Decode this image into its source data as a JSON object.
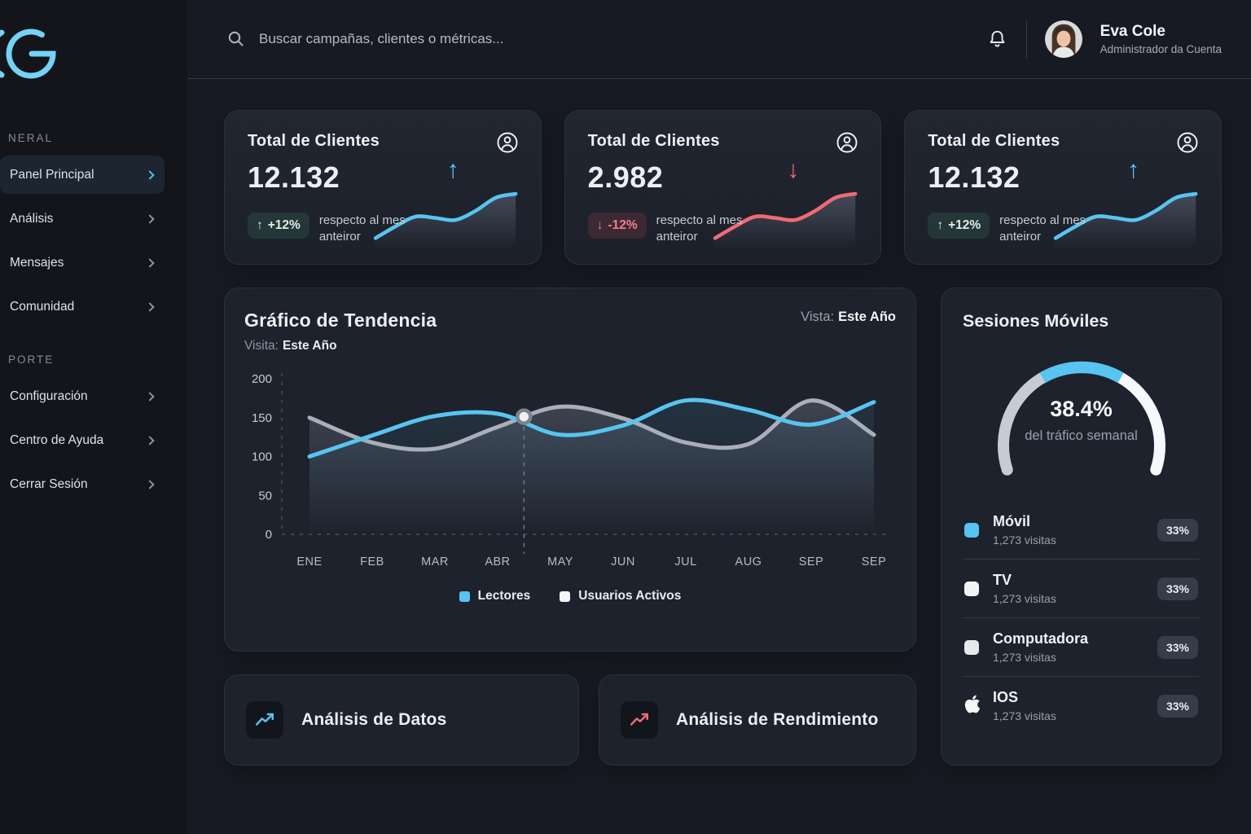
{
  "topbar": {
    "search_placeholder": "Buscar campañas, clientes o métricas...",
    "user_name": "Eva Cole",
    "user_role": "Administrador da Cuenta"
  },
  "sidebar": {
    "sections": [
      {
        "label": "NERAL",
        "items": [
          {
            "label": "Panel Principal",
            "active": true
          },
          {
            "label": "Análisis",
            "active": false
          },
          {
            "label": "Mensajes",
            "active": false
          },
          {
            "label": "Comunidad",
            "active": false
          }
        ]
      },
      {
        "label": "PORTE",
        "items": [
          {
            "label": "Configuración",
            "active": false
          },
          {
            "label": "Centro de Ayuda",
            "active": false
          },
          {
            "label": "Cerrar Sesión",
            "active": false
          }
        ]
      }
    ]
  },
  "stat_cards": [
    {
      "title": "Total de Clientes",
      "value": "12.132",
      "arrow": "↑",
      "change": "+12%",
      "trend": "up",
      "note": "respecto al mes anteiror",
      "accent": "#58c4f0",
      "spark": [
        12,
        30,
        45,
        43,
        40,
        54,
        74,
        80
      ]
    },
    {
      "title": "Total de Clientes",
      "value": "2.982",
      "arrow": "↓",
      "change": "-12%",
      "trend": "down",
      "note": "respecto al mes anteiror",
      "accent": "#ef6b74",
      "spark": [
        12,
        30,
        45,
        43,
        40,
        54,
        74,
        80
      ]
    },
    {
      "title": "Total de Clientes",
      "value": "12.132",
      "arrow": "↑",
      "change": "+12%",
      "trend": "up",
      "note": "respecto al mes anteiror",
      "accent": "#58c4f0",
      "spark": [
        12,
        30,
        45,
        43,
        40,
        54,
        74,
        80
      ]
    }
  ],
  "trend_card": {
    "title": "Gráfico de Tendencia",
    "view_label": "Vista:",
    "view_value": "Este Año",
    "subtitle_label": "Visita:",
    "subtitle_value": "Este Año"
  },
  "chart_data": [
    {
      "type": "line",
      "title": "Gráfico de Tendencia",
      "view": "Este Año",
      "categories": [
        "ENE",
        "FEB",
        "MAR",
        "ABR",
        "MAY",
        "JUN",
        "JUL",
        "AUG",
        "SEP",
        "SEP"
      ],
      "series": [
        {
          "name": "Lectores",
          "color": "#58c4f0",
          "legend_color": "#58c4f0",
          "values": [
            100,
            127,
            152,
            155,
            128,
            140,
            172,
            160,
            141,
            170
          ]
        },
        {
          "name": "Usuarios Activos",
          "color": "#a9aeb9",
          "legend_color": "#f3f5f8",
          "values": [
            150,
            118,
            110,
            138,
            164,
            149,
            118,
            116,
            172,
            128
          ]
        }
      ],
      "ylim": [
        0,
        200
      ],
      "yticks": [
        0,
        50,
        100,
        150,
        200
      ],
      "marker": {
        "series": "Usuarios Activos",
        "between": [
          "ABR",
          "MAY"
        ],
        "value": 158
      },
      "legend_position": "bottom",
      "grid": "dashed y-axis and zero-line only"
    },
    {
      "type": "gauge",
      "label": "38.4%",
      "value": 38.4,
      "caption": "del tráfico semanal",
      "highlight_color": "#58c4f0",
      "track_colors": [
        "#c7ccd4",
        "#f6f8fb"
      ]
    }
  ],
  "sessions": {
    "title": "Sesiones Móviles",
    "devices": [
      {
        "name": "Móvil",
        "visits": "1,273 visitas",
        "share": "33%",
        "bullet": "#58c4f0",
        "icon": "square"
      },
      {
        "name": "TV",
        "visits": "1,273 visitas",
        "share": "33%",
        "bullet": "#f2f4f7",
        "icon": "square"
      },
      {
        "name": "Computadora",
        "visits": "1,273 visitas",
        "share": "33%",
        "bullet": "#e6e9ee",
        "icon": "square"
      },
      {
        "name": "IOS",
        "visits": "1,273 visitas",
        "share": "33%",
        "bullet": "#ffffff",
        "icon": "apple"
      }
    ]
  },
  "bottom_cards": [
    {
      "title": "Análisis de Datos",
      "accent": "#58c4f0"
    },
    {
      "title": "Análisis de Rendimiento",
      "accent": "#ef6b74"
    }
  ],
  "colors": {
    "accent_blue": "#58c4f0",
    "accent_red": "#ef6b74",
    "gauge_gray": "#c7ccd4",
    "gauge_white": "#f6f8fb",
    "badge_green_bg": "rgba(84,200,150,0.13)",
    "badge_red_bg": "rgba(240,85,100,0.15)"
  }
}
